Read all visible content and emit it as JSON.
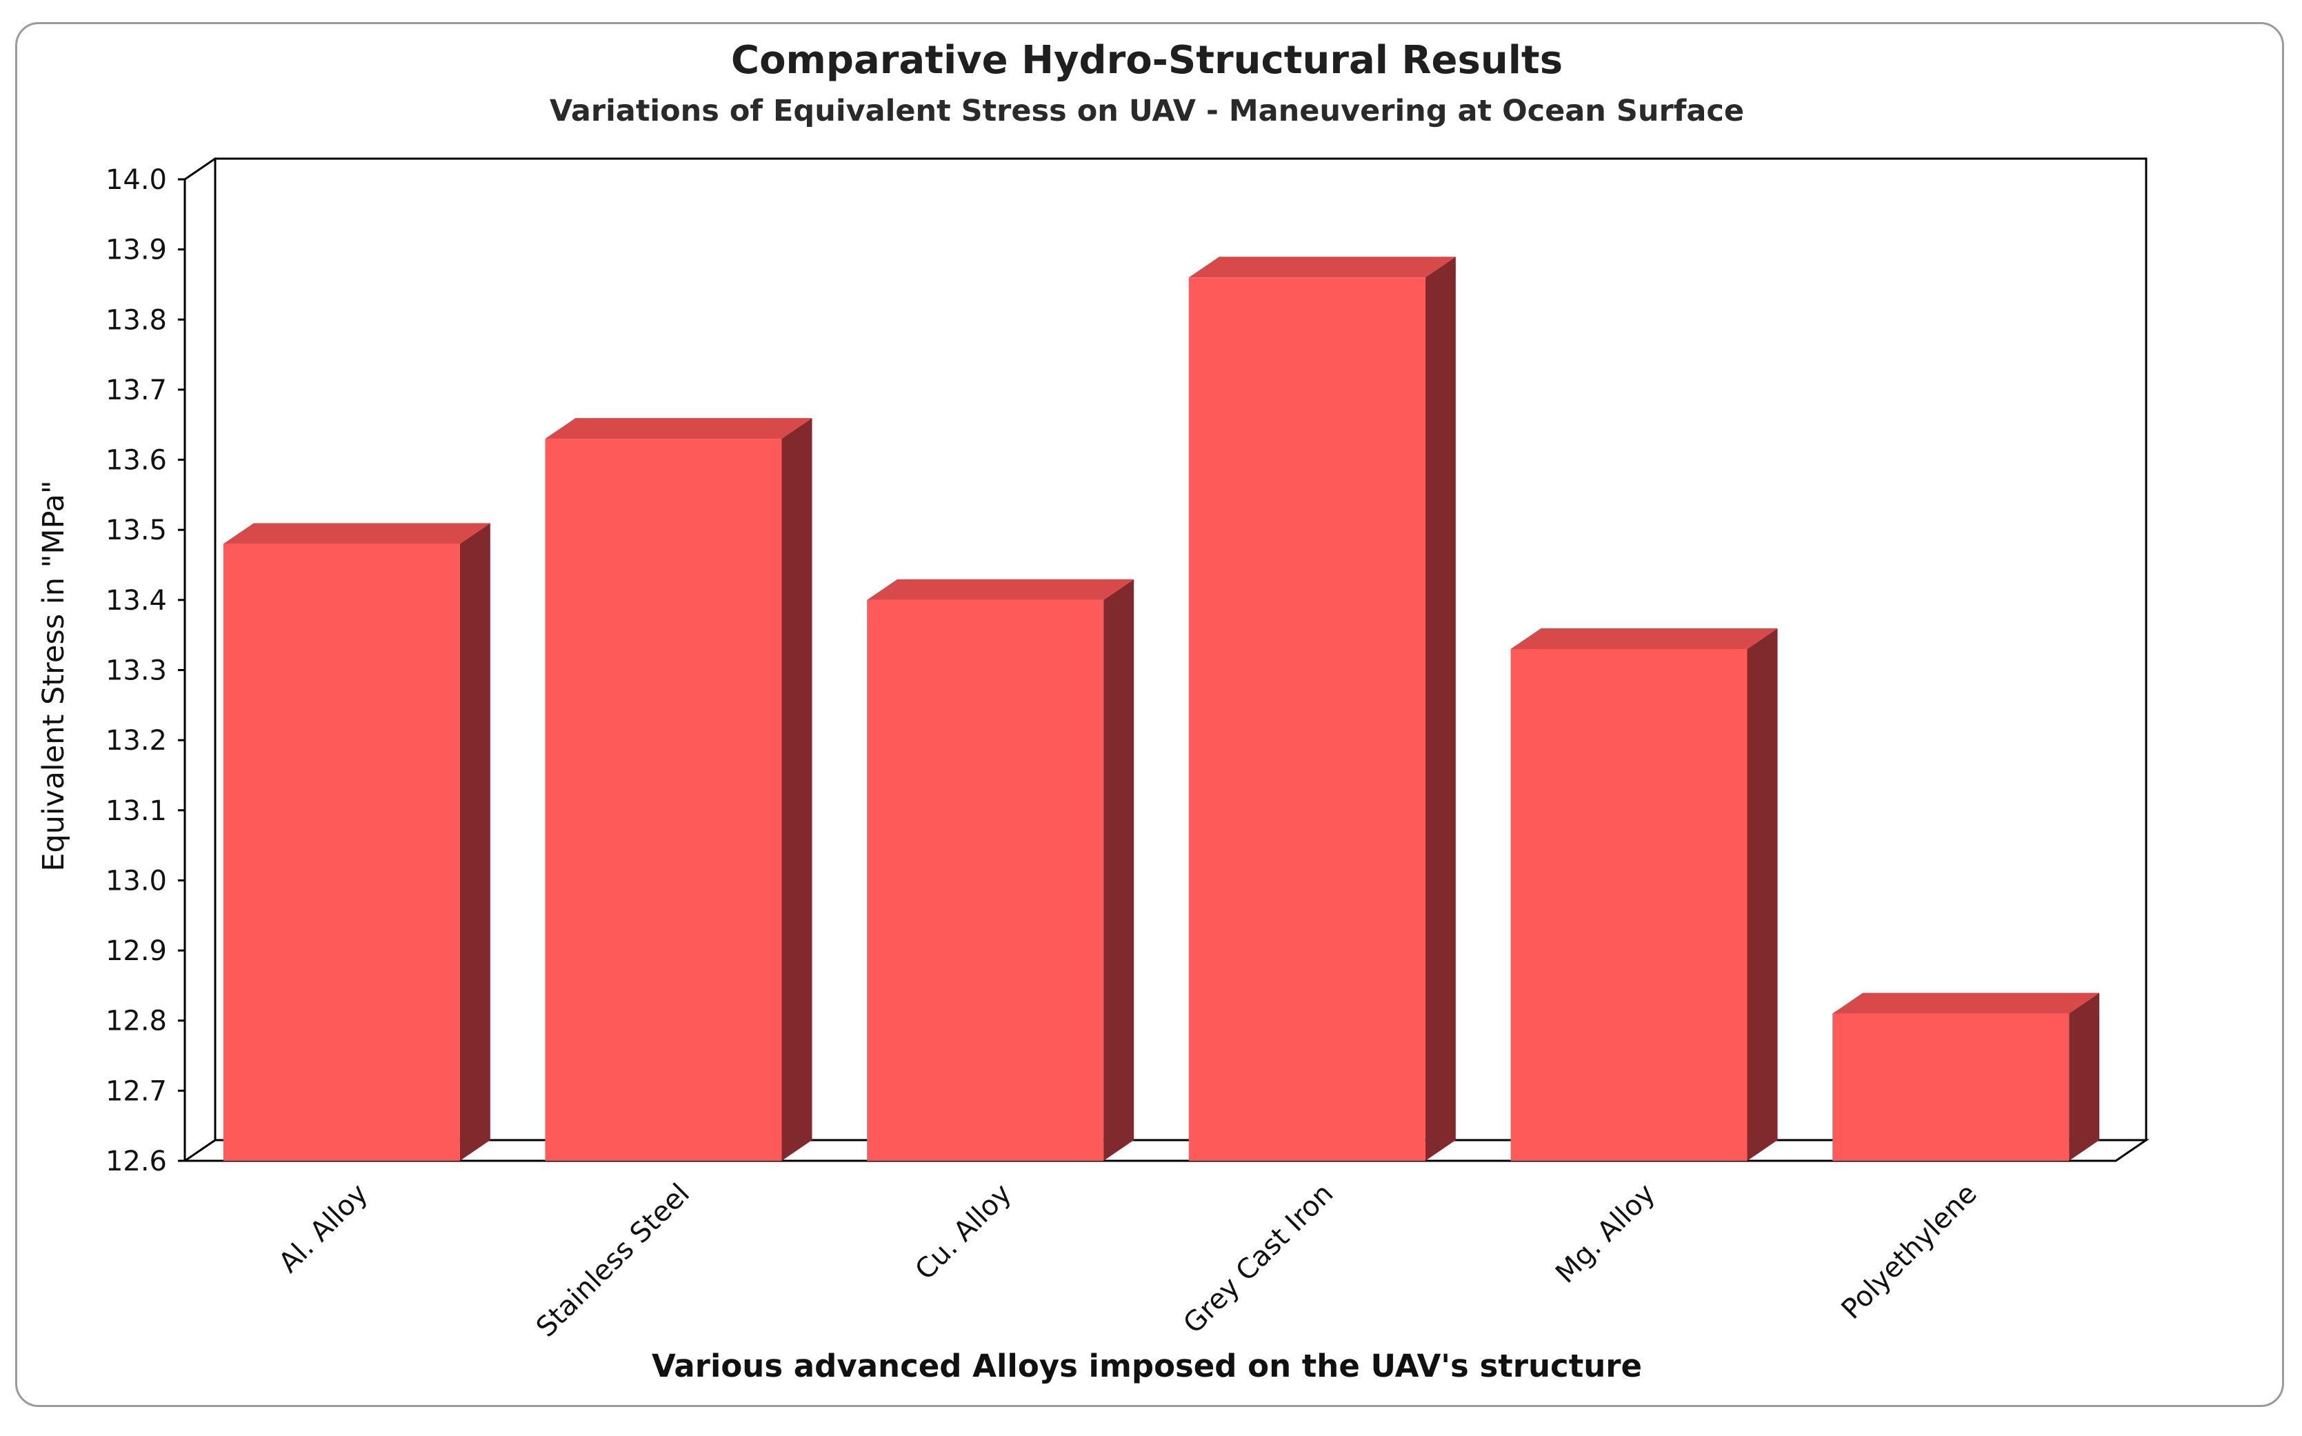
{
  "chart_data": {
    "type": "bar",
    "title": "Comparative Hydro-Structural Results",
    "subtitle": "Variations of Equivalent Stress on UAV - Maneuvering at Ocean Surface",
    "xlabel": "Various advanced Alloys imposed on the UAV's structure",
    "ylabel": "Equivalent Stress in \"MPa\"",
    "ylim": [
      12.6,
      14.0
    ],
    "yticks": [
      "14.0",
      "13.9",
      "13.8",
      "13.7",
      "13.6",
      "13.5",
      "13.4",
      "13.3",
      "13.2",
      "13.1",
      "13.0",
      "12.9",
      "12.8",
      "12.7",
      "12.6"
    ],
    "categories": [
      "Al. Alloy",
      "Stainless Steel",
      "Cu. Alloy",
      "Grey Cast Iron",
      "Mg. Alloy",
      "Polyethylene"
    ],
    "values": [
      13.48,
      13.63,
      13.4,
      13.86,
      13.33,
      12.81
    ],
    "grid": false,
    "colors": {
      "bar_front": "#fe5a5a",
      "bar_top": "#d84a4a",
      "bar_side": "#802a2d"
    }
  }
}
